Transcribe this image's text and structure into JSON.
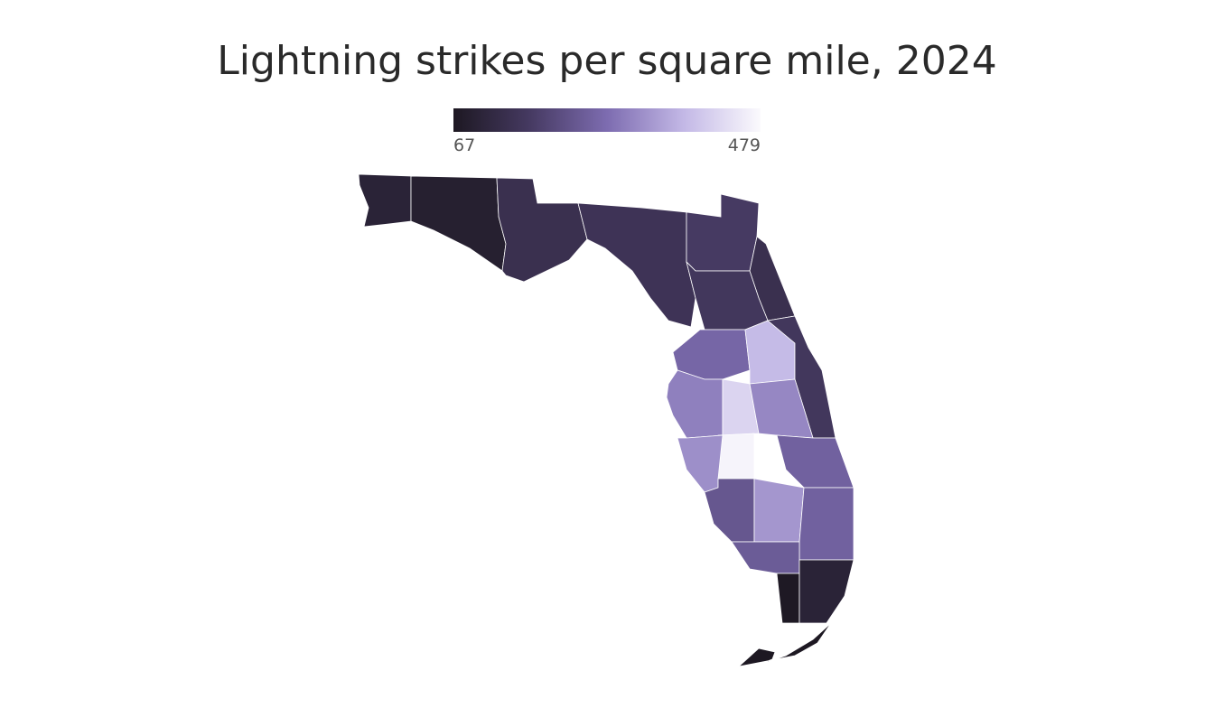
{
  "chart_data": {
    "type": "choropleth",
    "title": "Lightning strikes per square mile, 2024",
    "scale_min": 67,
    "scale_max": 479,
    "colorscale": [
      "#1d1822",
      "#463a62",
      "#7d6cb0",
      "#c3b8e6",
      "#fbfafd"
    ],
    "region_stroke": "#ffffff",
    "regions": [
      100,
      90,
      140,
      150,
      170,
      140,
      160,
      260,
      380,
      160,
      300,
      420,
      310,
      470,
      320,
      250,
      230,
      330,
      250,
      240,
      70,
      100,
      67
    ]
  }
}
